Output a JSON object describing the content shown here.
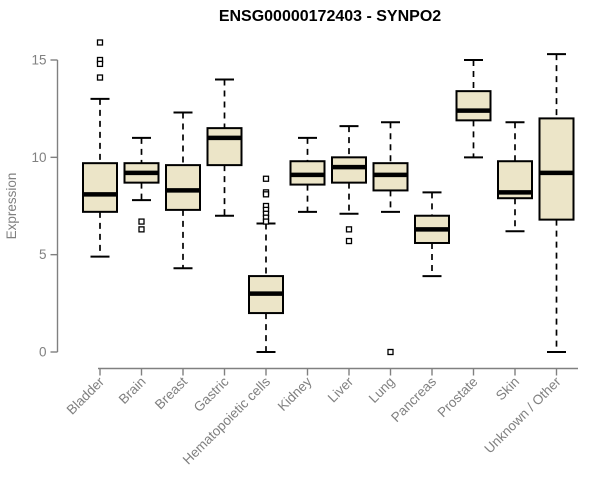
{
  "chart_data": {
    "type": "boxplot",
    "title": "ENSG00000172403 - SYNPO2",
    "xlabel": "",
    "ylabel": "Expression",
    "ylim": [
      0,
      15
    ],
    "yticks": [
      0,
      5,
      10,
      15
    ],
    "grid": false,
    "legend": "none",
    "whisker_style": "dashed",
    "outlier_marker": "open-square",
    "categories": [
      "Bladder",
      "Brain",
      "Breast",
      "Gastric",
      "Hematopoietic cells",
      "Kidney",
      "Liver",
      "Lung",
      "Pancreas",
      "Prostate",
      "Skin",
      "Unknown / Other"
    ],
    "series": [
      {
        "category": "Bladder",
        "whisker_low": 4.9,
        "q1": 7.2,
        "median": 8.1,
        "q3": 9.7,
        "whisker_high": 13.0,
        "outliers": [
          15.9,
          15.0,
          14.8,
          14.1
        ]
      },
      {
        "category": "Brain",
        "whisker_low": 7.8,
        "q1": 8.7,
        "median": 9.2,
        "q3": 9.7,
        "whisker_high": 11.0,
        "outliers": [
          6.7,
          6.3
        ]
      },
      {
        "category": "Breast",
        "whisker_low": 4.3,
        "q1": 7.3,
        "median": 8.3,
        "q3": 9.6,
        "whisker_high": 12.3,
        "outliers": []
      },
      {
        "category": "Gastric",
        "whisker_low": 7.0,
        "q1": 9.6,
        "median": 11.0,
        "q3": 11.5,
        "whisker_high": 14.0,
        "outliers": []
      },
      {
        "category": "Hematopoietic cells",
        "whisker_low": 0.0,
        "q1": 2.0,
        "median": 3.0,
        "q3": 3.9,
        "whisker_high": 6.6,
        "outliers": [
          8.9,
          8.2,
          8.1,
          7.5,
          7.3,
          7.1,
          6.9,
          6.7
        ]
      },
      {
        "category": "Kidney",
        "whisker_low": 7.2,
        "q1": 8.6,
        "median": 9.1,
        "q3": 9.8,
        "whisker_high": 11.0,
        "outliers": []
      },
      {
        "category": "Liver",
        "whisker_low": 7.1,
        "q1": 8.7,
        "median": 9.5,
        "q3": 10.0,
        "whisker_high": 11.6,
        "outliers": [
          6.3,
          5.7
        ]
      },
      {
        "category": "Lung",
        "whisker_low": 7.2,
        "q1": 8.3,
        "median": 9.1,
        "q3": 9.7,
        "whisker_high": 11.8,
        "outliers": [
          0.0
        ]
      },
      {
        "category": "Pancreas",
        "whisker_low": 3.9,
        "q1": 5.6,
        "median": 6.3,
        "q3": 7.0,
        "whisker_high": 8.2,
        "outliers": []
      },
      {
        "category": "Prostate",
        "whisker_low": 10.0,
        "q1": 11.9,
        "median": 12.4,
        "q3": 13.4,
        "whisker_high": 15.0,
        "outliers": []
      },
      {
        "category": "Skin",
        "whisker_low": 6.2,
        "q1": 7.9,
        "median": 8.2,
        "q3": 9.8,
        "whisker_high": 11.8,
        "outliers": []
      },
      {
        "category": "Unknown / Other",
        "whisker_low": 0.0,
        "q1": 6.8,
        "median": 9.2,
        "q3": 12.0,
        "whisker_high": 15.3,
        "outliers": []
      }
    ],
    "colors": {
      "box_fill": "#ece5c8",
      "box_border": "#000000",
      "median_line": "#000000",
      "whisker": "#000000",
      "outlier": "#000000",
      "axis": "#808080",
      "tick_labels": "#808080",
      "title": "#000000",
      "background": "#ffffff"
    }
  }
}
